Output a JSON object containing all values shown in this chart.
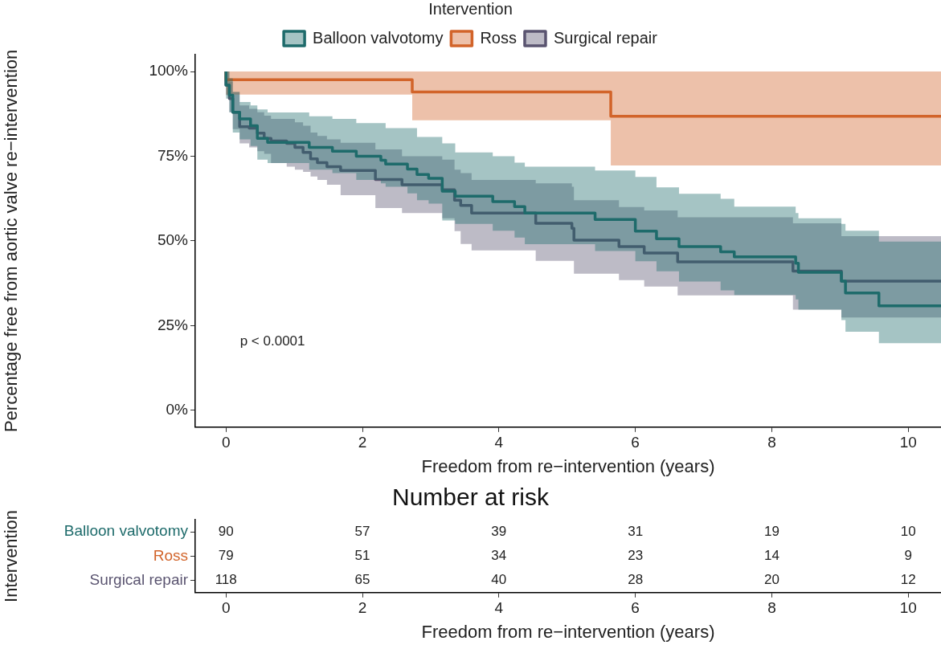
{
  "chart_data": [
    {
      "type": "step",
      "xlabel": "Freedom from re−intervention (years)",
      "ylabel": "Percentage free from aortic valve re−intervention",
      "legend_title": "Intervention",
      "legend": "top",
      "grid": false,
      "xlim": [
        -0.45,
        10.48
      ],
      "xticks": [
        0,
        2,
        4,
        6,
        8,
        10
      ],
      "ylim": [
        -5,
        105
      ],
      "yticks": [
        {
          "value": 0,
          "label": "0%"
        },
        {
          "value": 25,
          "label": "25%"
        },
        {
          "value": 50,
          "label": "50%"
        },
        {
          "value": 75,
          "label": "75%"
        },
        {
          "value": 100,
          "label": "100%"
        }
      ],
      "annotations": [
        "p < 0.0001"
      ],
      "series": [
        {
          "name": "Balloon valvotomy",
          "color": "#1e6b6b",
          "x": [
            0,
            0.05,
            0.1,
            0.2,
            0.36,
            0.46,
            0.61,
            1.22,
            1.56,
            1.91,
            2.27,
            2.34,
            2.66,
            2.8,
            2.97,
            3.17,
            3.36,
            3.91,
            4.23,
            4.38,
            5.41,
            6.0,
            6.31,
            6.64,
            7.25,
            7.45,
            8.35,
            8.39,
            9.02,
            9.08,
            9.57,
            10.27,
            10.48
          ],
          "values": [
            100,
            96,
            93,
            88,
            86,
            84,
            80.3,
            79.1,
            77.6,
            76.5,
            75,
            73.8,
            72.7,
            71.2,
            69.6,
            68.5,
            64.7,
            63.2,
            61.6,
            60.1,
            58.2,
            56.3,
            52.9,
            50.6,
            48.3,
            46.8,
            45.3,
            43.4,
            40.7,
            38.1,
            34.6,
            30.8,
            30.8
          ],
          "lower": [
            100,
            92,
            88,
            82,
            80,
            78,
            74,
            73,
            71,
            70,
            68,
            67,
            66,
            64,
            62,
            61,
            56,
            55,
            53,
            51,
            49,
            47,
            44,
            41,
            38,
            35.4,
            34,
            32.7,
            29.7,
            26.6,
            23.2,
            19.8,
            19.8
          ],
          "upper": [
            100,
            100,
            98,
            94,
            91,
            90,
            88.8,
            87.9,
            86.8,
            86,
            84.8,
            84.8,
            83.3,
            83.3,
            80.7,
            80.7,
            78.8,
            76.1,
            75,
            73.1,
            71.9,
            70.8,
            68.9,
            65.8,
            63.9,
            62.4,
            60.1,
            58.2,
            56.7,
            55,
            53,
            49.8,
            49.8
          ]
        },
        {
          "name": "Ross",
          "color": "#d2642a",
          "x": [
            0,
            2.73,
            5.64,
            8.5,
            10.48
          ],
          "values": [
            100,
            97.6,
            94,
            86.8,
            86.8
          ],
          "lower": [
            100,
            93.2,
            85.6,
            72.3,
            72.3
          ],
          "upper": [
            100,
            100,
            100,
            100,
            100
          ]
        },
        {
          "name": "Surgical repair",
          "color": "#5a5470",
          "x": [
            0,
            0.05,
            0.1,
            0.2,
            0.34,
            0.46,
            0.56,
            0.66,
            0.89,
            1.01,
            1.13,
            1.24,
            1.34,
            1.48,
            1.68,
            2.19,
            2.58,
            3.17,
            3.35,
            3.44,
            3.6,
            4.54,
            5.07,
            5.1,
            5.76,
            6.13,
            6.62,
            8.31,
            9.02,
            9.76,
            10.48
          ],
          "values": [
            100,
            96,
            92,
            88,
            83.7,
            83.3,
            81.8,
            80.3,
            79.5,
            78.8,
            77.6,
            76.1,
            74.2,
            73.1,
            71.9,
            70.8,
            68.1,
            66.6,
            65.1,
            62,
            60.5,
            58.2,
            55.2,
            53.7,
            50.2,
            48.3,
            46.4,
            43.8,
            41.1,
            38.1,
            38.1
          ],
          "lower": [
            100,
            93,
            88,
            83,
            78.8,
            77.6,
            76.5,
            75.7,
            73,
            71.9,
            71,
            70.4,
            69,
            68,
            66.6,
            63.5,
            59.7,
            58.2,
            56.7,
            52.9,
            49.1,
            47.2,
            44.1,
            44.1,
            40.3,
            38.4,
            36.5,
            33.9,
            29.7,
            27.4,
            27.4
          ],
          "upper": [
            100,
            100,
            97,
            94,
            90,
            89,
            88,
            87,
            86,
            86,
            85,
            84,
            82,
            81,
            80,
            79,
            77,
            75,
            74,
            71,
            70,
            68,
            67,
            66,
            62,
            60,
            59,
            57,
            55.2,
            51.4,
            51.4
          ]
        }
      ]
    },
    {
      "type": "heatmap",
      "title": "Number at risk",
      "xlabel": "Freedom from re−intervention (years)",
      "ylabel": "Intervention",
      "x": [
        0,
        2,
        4,
        6,
        8,
        10
      ],
      "xlim": [
        -0.45,
        10.48
      ],
      "xticks": [
        0,
        2,
        4,
        6,
        8,
        10
      ],
      "y_categories": [
        "Balloon valvotomy",
        "Ross",
        "Surgical repair"
      ],
      "cells": [
        [
          90,
          57,
          39,
          31,
          19,
          10
        ],
        [
          79,
          51,
          34,
          23,
          14,
          9
        ],
        [
          118,
          65,
          40,
          28,
          20,
          12
        ]
      ],
      "data_labels": true
    }
  ]
}
